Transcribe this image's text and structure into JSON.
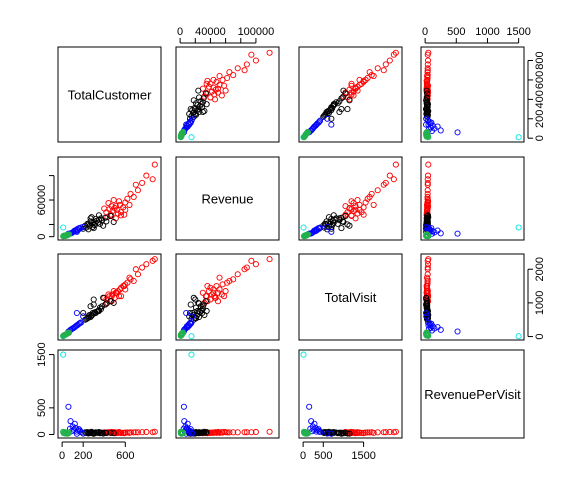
{
  "chart_data": {
    "type": "scatter",
    "variables": [
      "TotalCustomer",
      "Revenue",
      "TotalVisit",
      "RevenuePerVisit"
    ],
    "ranges": {
      "TotalCustomer": [
        0,
        900
      ],
      "Revenue": [
        0,
        125000
      ],
      "TotalVisit": [
        0,
        2350
      ],
      "RevenuePerVisit": [
        0,
        1520
      ]
    },
    "ticks": {
      "TotalCustomer": {
        "values": [
          0,
          200,
          600
        ],
        "labels": [
          "0",
          "200",
          "600"
        ]
      },
      "TotalCustomer_right": {
        "values": [
          0,
          200,
          400,
          600,
          800
        ],
        "labels": [
          "0",
          "200",
          "400",
          "600",
          "800"
        ]
      },
      "Revenue": {
        "values": [
          0,
          20000,
          40000,
          60000,
          80000,
          100000
        ],
        "labels": [
          "0",
          "",
          "40000",
          "",
          "",
          "100000"
        ]
      },
      "Revenue_left": {
        "values": [
          0,
          20000,
          60000,
          100000
        ],
        "labels": [
          "0",
          "",
          "60000",
          ""
        ]
      },
      "TotalVisit": {
        "values": [
          0,
          500,
          1500
        ],
        "labels": [
          "0",
          "500",
          "1500"
        ]
      },
      "TotalVisit_right": {
        "values": [
          0,
          1000,
          2000
        ],
        "labels": [
          "0",
          "1000",
          "2000"
        ]
      },
      "RevenuePerVisit": {
        "values": [
          0,
          500,
          1000,
          1500
        ],
        "labels": [
          "0",
          "500",
          "1000",
          "1500"
        ]
      },
      "RevenuePerVisit_left": {
        "values": [
          0,
          500,
          1500
        ],
        "labels": [
          "0",
          "500",
          "1500"
        ]
      }
    },
    "colors": {
      "green": "#22b14c",
      "blue": "#0000ff",
      "black": "#000000",
      "red": "#ff0000",
      "cyan": "#00e5e5"
    },
    "grid": false,
    "legend": "none",
    "points": [
      {
        "c": "green",
        "tc": 15,
        "rev": 1200,
        "tv": 30,
        "rpv": 25
      },
      {
        "c": "green",
        "tc": 25,
        "rev": 1500,
        "tv": 45,
        "rpv": 30
      },
      {
        "c": "green",
        "tc": 35,
        "rev": 2200,
        "tv": 60,
        "rpv": 20
      },
      {
        "c": "green",
        "tc": 45,
        "rev": 2800,
        "tv": 80,
        "rpv": 35
      },
      {
        "c": "green",
        "tc": 20,
        "rev": 1800,
        "tv": 40,
        "rpv": 45
      },
      {
        "c": "green",
        "tc": 55,
        "rev": 3200,
        "tv": 100,
        "rpv": 28
      },
      {
        "c": "green",
        "tc": 30,
        "rev": 1000,
        "tv": 55,
        "rpv": 18
      },
      {
        "c": "green",
        "tc": 40,
        "rev": 2500,
        "tv": 70,
        "rpv": 40
      },
      {
        "c": "green",
        "tc": 60,
        "rev": 3600,
        "tv": 120,
        "rpv": 22
      },
      {
        "c": "green",
        "tc": 10,
        "rev": 800,
        "tv": 20,
        "rpv": 50
      },
      {
        "c": "green",
        "tc": 50,
        "rev": 2000,
        "tv": 90,
        "rpv": 15
      },
      {
        "c": "green",
        "tc": 65,
        "rev": 4000,
        "tv": 110,
        "rpv": 33
      },
      {
        "c": "blue",
        "tc": 90,
        "rev": 6000,
        "tv": 220,
        "rpv": 60
      },
      {
        "c": "blue",
        "tc": 110,
        "rev": 8500,
        "tv": 260,
        "rpv": 90
      },
      {
        "c": "blue",
        "tc": 130,
        "rev": 9000,
        "tv": 310,
        "rpv": 120
      },
      {
        "c": "blue",
        "tc": 150,
        "rev": 11000,
        "tv": 350,
        "rpv": 80
      },
      {
        "c": "blue",
        "tc": 100,
        "rev": 7000,
        "tv": 240,
        "rpv": 150
      },
      {
        "c": "blue",
        "tc": 170,
        "rev": 13000,
        "tv": 400,
        "rpv": 70
      },
      {
        "c": "blue",
        "tc": 120,
        "rev": 10000,
        "tv": 280,
        "rpv": 200
      },
      {
        "c": "blue",
        "tc": 140,
        "rev": 12000,
        "tv": 330,
        "rpv": 55
      },
      {
        "c": "blue",
        "tc": 80,
        "rev": 5500,
        "tv": 200,
        "rpv": 250
      },
      {
        "c": "blue",
        "tc": 160,
        "rev": 14000,
        "tv": 380,
        "rpv": 100
      },
      {
        "c": "blue",
        "tc": 75,
        "rev": 4800,
        "tv": 180,
        "rpv": 110
      },
      {
        "c": "blue",
        "tc": 180,
        "rev": 15000,
        "tv": 420,
        "rpv": 45
      },
      {
        "c": "blue",
        "tc": 60,
        "rev": 5000,
        "tv": 150,
        "rpv": 520
      },
      {
        "c": "blue",
        "tc": 200,
        "rev": 16000,
        "tv": 600,
        "rpv": 20
      },
      {
        "c": "blue",
        "tc": 140,
        "rev": 8000,
        "tv": 700,
        "rpv": 15
      },
      {
        "c": "black",
        "tc": 220,
        "rev": 18000,
        "tv": 500,
        "rpv": 40
      },
      {
        "c": "black",
        "tc": 250,
        "rev": 20000,
        "tv": 560,
        "rpv": 35
      },
      {
        "c": "black",
        "tc": 280,
        "rev": 22000,
        "tv": 620,
        "rpv": 38
      },
      {
        "c": "black",
        "tc": 300,
        "rev": 24000,
        "tv": 680,
        "rpv": 30
      },
      {
        "c": "black",
        "tc": 260,
        "rev": 17000,
        "tv": 640,
        "rpv": 28
      },
      {
        "c": "black",
        "tc": 330,
        "rev": 26000,
        "tv": 740,
        "rpv": 34
      },
      {
        "c": "black",
        "tc": 350,
        "rev": 28000,
        "tv": 780,
        "rpv": 36
      },
      {
        "c": "black",
        "tc": 240,
        "rev": 21000,
        "tv": 540,
        "rpv": 45
      },
      {
        "c": "black",
        "tc": 310,
        "rev": 19000,
        "tv": 720,
        "rpv": 25
      },
      {
        "c": "black",
        "tc": 370,
        "rev": 30000,
        "tv": 820,
        "rpv": 36
      },
      {
        "c": "black",
        "tc": 270,
        "rev": 25000,
        "tv": 580,
        "rpv": 44
      },
      {
        "c": "black",
        "tc": 290,
        "rev": 16000,
        "tv": 700,
        "rpv": 22
      },
      {
        "c": "black",
        "tc": 340,
        "rev": 23000,
        "tv": 760,
        "rpv": 30
      },
      {
        "c": "black",
        "tc": 380,
        "rev": 27000,
        "tv": 900,
        "rpv": 29
      },
      {
        "c": "black",
        "tc": 230,
        "rev": 15000,
        "tv": 520,
        "rpv": 29
      },
      {
        "c": "black",
        "tc": 320,
        "rev": 29000,
        "tv": 700,
        "rpv": 41
      },
      {
        "c": "black",
        "tc": 360,
        "rev": 21000,
        "tv": 860,
        "rpv": 24
      },
      {
        "c": "black",
        "tc": 300,
        "rev": 14000,
        "tv": 950,
        "rpv": 15
      },
      {
        "c": "black",
        "tc": 280,
        "rev": 32000,
        "tv": 640,
        "rpv": 50
      },
      {
        "c": "black",
        "tc": 410,
        "rev": 31000,
        "tv": 950,
        "rpv": 33
      },
      {
        "c": "black",
        "tc": 250,
        "rev": 12000,
        "tv": 600,
        "rpv": 20
      },
      {
        "c": "black",
        "tc": 420,
        "rev": 25000,
        "tv": 980,
        "rpv": 26
      },
      {
        "c": "black",
        "tc": 200,
        "rev": 13000,
        "tv": 700,
        "rpv": 18
      },
      {
        "c": "black",
        "tc": 460,
        "rev": 34000,
        "tv": 1050,
        "rpv": 32
      },
      {
        "c": "black",
        "tc": 490,
        "rev": 24000,
        "tv": 1000,
        "rpv": 24
      },
      {
        "c": "black",
        "tc": 300,
        "rev": 20000,
        "tv": 1100,
        "rpv": 18
      },
      {
        "c": "black",
        "tc": 350,
        "rev": 35000,
        "tv": 760,
        "rpv": 46
      },
      {
        "c": "black",
        "tc": 390,
        "rev": 18000,
        "tv": 1150,
        "rpv": 16
      },
      {
        "c": "black",
        "tc": 270,
        "rev": 30000,
        "tv": 900,
        "rpv": 33
      },
      {
        "c": "red",
        "tc": 420,
        "rev": 40000,
        "tv": 1100,
        "rpv": 36
      },
      {
        "c": "red",
        "tc": 450,
        "rev": 45000,
        "tv": 1200,
        "rpv": 38
      },
      {
        "c": "red",
        "tc": 480,
        "rev": 42000,
        "tv": 1250,
        "rpv": 34
      },
      {
        "c": "red",
        "tc": 510,
        "rev": 50000,
        "tv": 1300,
        "rpv": 39
      },
      {
        "c": "red",
        "tc": 530,
        "rev": 38000,
        "tv": 1350,
        "rpv": 28
      },
      {
        "c": "red",
        "tc": 460,
        "rev": 36000,
        "tv": 1050,
        "rpv": 34
      },
      {
        "c": "red",
        "tc": 500,
        "rev": 47000,
        "tv": 1150,
        "rpv": 41
      },
      {
        "c": "red",
        "tc": 550,
        "rev": 52000,
        "tv": 1400,
        "rpv": 37
      },
      {
        "c": "red",
        "tc": 440,
        "rev": 55000,
        "tv": 1250,
        "rpv": 44
      },
      {
        "c": "red",
        "tc": 580,
        "rev": 48000,
        "tv": 1500,
        "rpv": 32
      },
      {
        "c": "red",
        "tc": 470,
        "rev": 34000,
        "tv": 1200,
        "rpv": 28
      },
      {
        "c": "red",
        "tc": 520,
        "rev": 44000,
        "tv": 1300,
        "rpv": 34
      },
      {
        "c": "red",
        "tc": 490,
        "rev": 60000,
        "tv": 1350,
        "rpv": 44
      },
      {
        "c": "red",
        "tc": 560,
        "rev": 40000,
        "tv": 1450,
        "rpv": 28
      },
      {
        "c": "red",
        "tc": 600,
        "rev": 56000,
        "tv": 1550,
        "rpv": 36
      },
      {
        "c": "red",
        "tc": 620,
        "rev": 62000,
        "tv": 1600,
        "rpv": 39
      },
      {
        "c": "red",
        "tc": 650,
        "rev": 70000,
        "tv": 1700,
        "rpv": 41
      },
      {
        "c": "red",
        "tc": 680,
        "rev": 65000,
        "tv": 1650,
        "rpv": 39
      },
      {
        "c": "red",
        "tc": 430,
        "rev": 32000,
        "tv": 1000,
        "rpv": 32
      },
      {
        "c": "red",
        "tc": 540,
        "rev": 58000,
        "tv": 1200,
        "rpv": 48
      },
      {
        "c": "red",
        "tc": 400,
        "rev": 46000,
        "tv": 1150,
        "rpv": 40
      },
      {
        "c": "red",
        "tc": 590,
        "rev": 36000,
        "tv": 1500,
        "rpv": 24
      },
      {
        "c": "red",
        "tc": 470,
        "rev": 50000,
        "tv": 1050,
        "rpv": 48
      },
      {
        "c": "red",
        "tc": 510,
        "rev": 30000,
        "tv": 1300,
        "rpv": 23
      },
      {
        "c": "red",
        "tc": 720,
        "rev": 76000,
        "tv": 1850,
        "rpv": 41
      },
      {
        "c": "red",
        "tc": 640,
        "rev": 52000,
        "tv": 1750,
        "rpv": 30
      },
      {
        "c": "red",
        "tc": 760,
        "rev": 88000,
        "tv": 2050,
        "rpv": 43
      },
      {
        "c": "red",
        "tc": 800,
        "rev": 100000,
        "tv": 2150,
        "rpv": 47
      },
      {
        "c": "red",
        "tc": 860,
        "rev": 94000,
        "tv": 2250,
        "rpv": 42
      },
      {
        "c": "red",
        "tc": 880,
        "rev": 118000,
        "tv": 2300,
        "rpv": 51
      },
      {
        "c": "red",
        "tc": 700,
        "rev": 85000,
        "tv": 2000,
        "rpv": 42
      },
      {
        "c": "red",
        "tc": 560,
        "rev": 35000,
        "tv": 1200,
        "rpv": 29
      },
      {
        "c": "red",
        "tc": 600,
        "rev": 44000,
        "tv": 1400,
        "rpv": 31
      },
      {
        "c": "cyan",
        "tc": 10,
        "rev": 15000,
        "tv": 10,
        "rpv": 1500
      }
    ]
  }
}
